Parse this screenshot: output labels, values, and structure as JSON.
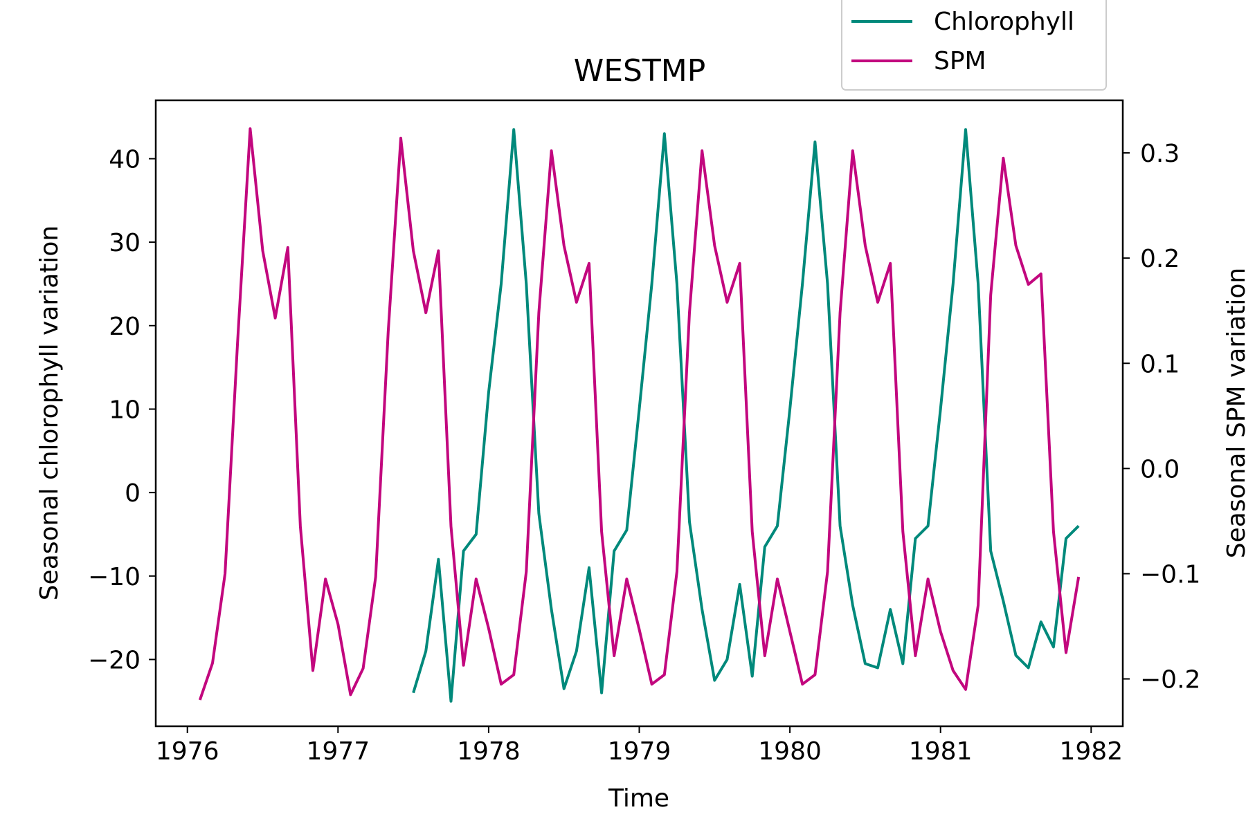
{
  "chart_data": {
    "type": "line",
    "title": "WESTMP",
    "xlabel": "Time",
    "ylabel_left": "Seasonal chlorophyll variation",
    "ylabel_right": "Seasonal SPM variation",
    "xlim": [
      1975.79,
      1982.21
    ],
    "ylim_left": [
      -28,
      47
    ],
    "ylim_right": [
      -0.245,
      0.35
    ],
    "x_ticks": [
      1976,
      1977,
      1978,
      1979,
      1980,
      1981,
      1982
    ],
    "x_tick_labels": [
      "1976",
      "1977",
      "1978",
      "1979",
      "1980",
      "1981",
      "1982"
    ],
    "y_left_ticks": [
      -20,
      -10,
      0,
      10,
      20,
      30,
      40
    ],
    "y_left_tick_labels": [
      "−20",
      "−10",
      "0",
      "10",
      "20",
      "30",
      "40"
    ],
    "y_right_ticks": [
      -0.2,
      -0.1,
      0.0,
      0.1,
      0.2,
      0.3
    ],
    "y_right_tick_labels": [
      "−0.2",
      "−0.1",
      "0.0",
      "0.1",
      "0.2",
      "0.3"
    ],
    "legend_position": "top-right, above plot",
    "grid": false,
    "series": [
      {
        "name": "Chlorophyll",
        "axis": "left",
        "color": "#00897b",
        "x": [
          1977.5,
          1977.583,
          1977.667,
          1977.75,
          1977.833,
          1977.917,
          1978.0,
          1978.083,
          1978.167,
          1978.25,
          1978.333,
          1978.417,
          1978.5,
          1978.583,
          1978.667,
          1978.75,
          1978.833,
          1978.917,
          1979.0,
          1979.083,
          1979.167,
          1979.25,
          1979.333,
          1979.417,
          1979.5,
          1979.583,
          1979.667,
          1979.75,
          1979.833,
          1979.917,
          1980.0,
          1980.083,
          1980.167,
          1980.25,
          1980.333,
          1980.417,
          1980.5,
          1980.583,
          1980.667,
          1980.75,
          1980.833,
          1980.917,
          1981.0,
          1981.083,
          1981.167,
          1981.25,
          1981.333,
          1981.417,
          1981.5,
          1981.583,
          1981.667,
          1981.75,
          1981.833,
          1981.917
        ],
        "values": [
          -24,
          -19,
          -8,
          -25,
          -7,
          -5,
          12,
          25,
          43.5,
          25,
          -2.5,
          -14,
          -23.5,
          -19,
          -9,
          -24,
          -7,
          -4.5,
          10,
          25,
          43,
          25,
          -3.5,
          -14,
          -22.5,
          -20,
          -11,
          -22,
          -6.5,
          -4,
          10,
          25,
          42,
          25,
          -4,
          -13.5,
          -20.5,
          -21,
          -14,
          -20.5,
          -5.5,
          -4,
          10,
          25,
          43.5,
          25,
          -7,
          -13,
          -19.5,
          -21,
          -15.5,
          -18.5,
          -5.5,
          -4
        ]
      },
      {
        "name": "SPM",
        "axis": "right",
        "color": "#c2077e",
        "x": [
          1976.083,
          1976.167,
          1976.25,
          1976.333,
          1976.417,
          1976.5,
          1976.583,
          1976.667,
          1976.75,
          1976.833,
          1976.917,
          1977.0,
          1977.083,
          1977.167,
          1977.25,
          1977.333,
          1977.417,
          1977.5,
          1977.583,
          1977.667,
          1977.75,
          1977.833,
          1977.917,
          1978.0,
          1978.083,
          1978.167,
          1978.25,
          1978.333,
          1978.417,
          1978.5,
          1978.583,
          1978.667,
          1978.75,
          1978.833,
          1978.917,
          1979.0,
          1979.083,
          1979.167,
          1979.25,
          1979.333,
          1979.417,
          1979.5,
          1979.583,
          1979.667,
          1979.75,
          1979.833,
          1979.917,
          1980.0,
          1980.083,
          1980.167,
          1980.25,
          1980.333,
          1980.417,
          1980.5,
          1980.583,
          1980.667,
          1980.75,
          1980.833,
          1980.917,
          1981.0,
          1981.083,
          1981.167,
          1981.25,
          1981.333,
          1981.417,
          1981.5,
          1981.583,
          1981.667,
          1981.75,
          1981.833,
          1981.917
        ],
        "values": [
          -0.22,
          -0.185,
          -0.1,
          0.12,
          0.323,
          0.207,
          0.143,
          0.21,
          -0.055,
          -0.192,
          -0.105,
          -0.148,
          -0.215,
          -0.19,
          -0.103,
          0.13,
          0.314,
          0.207,
          0.148,
          0.207,
          -0.055,
          -0.187,
          -0.105,
          -0.152,
          -0.205,
          -0.196,
          -0.098,
          0.148,
          0.302,
          0.212,
          0.158,
          0.195,
          -0.06,
          -0.178,
          -0.105,
          -0.153,
          -0.205,
          -0.196,
          -0.098,
          0.148,
          0.302,
          0.212,
          0.158,
          0.195,
          -0.06,
          -0.178,
          -0.105,
          -0.155,
          -0.205,
          -0.196,
          -0.098,
          0.148,
          0.302,
          0.212,
          0.158,
          0.195,
          -0.06,
          -0.178,
          -0.105,
          -0.155,
          -0.192,
          -0.21,
          -0.13,
          0.165,
          0.295,
          0.212,
          0.175,
          0.185,
          -0.06,
          -0.175,
          -0.103
        ]
      }
    ]
  }
}
